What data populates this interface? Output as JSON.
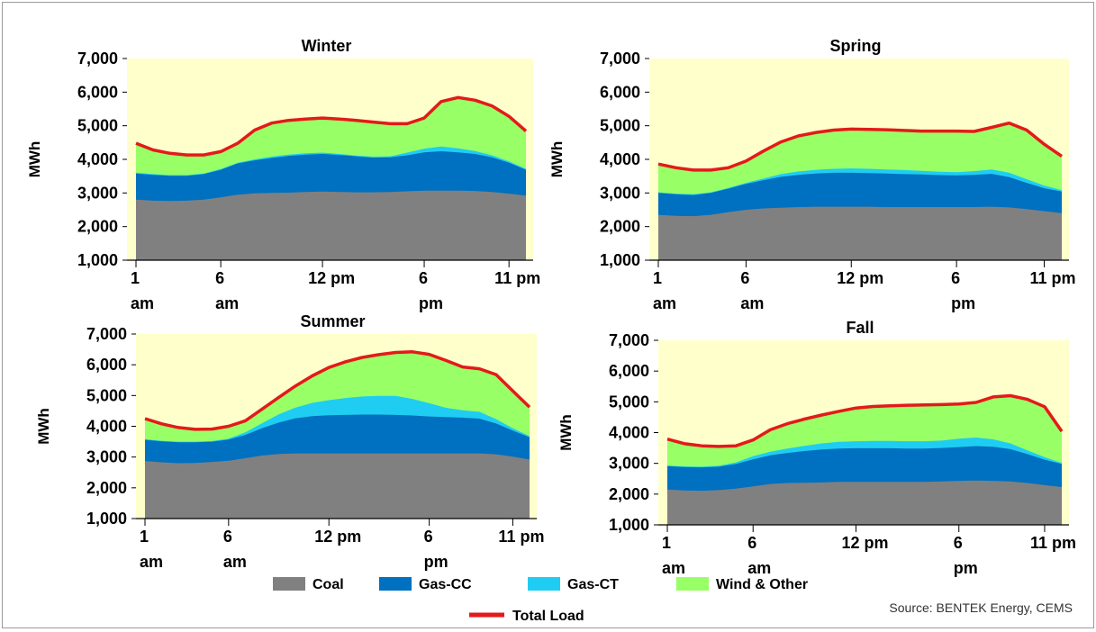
{
  "source": "Source: BENTEK Energy, CEMS",
  "colors": {
    "coal": "#808080",
    "gas_cc": "#0070C0",
    "gas_ct": "#1FCDF3",
    "wind_other": "#99FF66",
    "total_load": "#E31A1A",
    "plot_bg": "#FFFFCC"
  },
  "legend": [
    {
      "key": "coal",
      "label": "Coal"
    },
    {
      "key": "gas_cc",
      "label": "Gas-CC"
    },
    {
      "key": "gas_ct",
      "label": "Gas-CT"
    },
    {
      "key": "wind_other",
      "label": "Wind & Other"
    },
    {
      "key": "total_load",
      "label": "Total Load"
    }
  ],
  "chart_data": [
    {
      "type": "area",
      "title": "Winter",
      "ylabel": "MWh",
      "ylim": [
        1000,
        7000
      ],
      "yticks": [
        "1,000",
        "2,000",
        "3,000",
        "4,000",
        "5,000",
        "6,000",
        "7,000"
      ],
      "x": [
        1,
        2,
        3,
        4,
        5,
        6,
        7,
        8,
        9,
        10,
        11,
        12,
        13,
        14,
        15,
        16,
        17,
        18,
        19,
        20,
        21,
        22,
        23,
        24
      ],
      "xticks": [
        {
          "x": 1,
          "top": "1",
          "bottom": "am"
        },
        {
          "x": 6,
          "top": "6",
          "bottom": "am"
        },
        {
          "x": 12,
          "top": "12 pm",
          "bottom": ""
        },
        {
          "x": 18,
          "top": "6",
          "bottom": "pm"
        },
        {
          "x": 23,
          "top": "11 pm",
          "bottom": ""
        }
      ],
      "series": [
        {
          "name": "Coal",
          "key": "coal",
          "values": [
            2800,
            2770,
            2760,
            2770,
            2800,
            2870,
            2950,
            2990,
            3000,
            3010,
            3030,
            3040,
            3030,
            3020,
            3020,
            3030,
            3050,
            3070,
            3070,
            3070,
            3060,
            3030,
            2980,
            2920
          ]
        },
        {
          "name": "Gas-CC",
          "key": "gas_cc",
          "values": [
            3580,
            3540,
            3510,
            3510,
            3560,
            3690,
            3880,
            3970,
            4040,
            4100,
            4140,
            4160,
            4130,
            4090,
            4050,
            4060,
            4120,
            4210,
            4240,
            4210,
            4160,
            4060,
            3900,
            3690
          ]
        },
        {
          "name": "Gas-CT",
          "key": "gas_ct",
          "values": [
            3600,
            3560,
            3530,
            3530,
            3580,
            3710,
            3900,
            4000,
            4080,
            4140,
            4180,
            4200,
            4160,
            4110,
            4080,
            4090,
            4200,
            4320,
            4380,
            4330,
            4250,
            4120,
            3940,
            3720
          ]
        },
        {
          "name": "Wind & Other",
          "key": "wind_other",
          "values": [
            4480,
            4280,
            4180,
            4130,
            4130,
            4230,
            4480,
            4870,
            5080,
            5160,
            5200,
            5230,
            5200,
            5160,
            5110,
            5060,
            5060,
            5230,
            5720,
            5840,
            5760,
            5590,
            5280,
            4840
          ]
        },
        {
          "name": "Total Load",
          "key": "total_load",
          "values": [
            4480,
            4280,
            4180,
            4130,
            4130,
            4230,
            4480,
            4870,
            5080,
            5160,
            5200,
            5230,
            5200,
            5160,
            5110,
            5060,
            5060,
            5230,
            5720,
            5840,
            5760,
            5590,
            5280,
            4840
          ]
        }
      ]
    },
    {
      "type": "area",
      "title": "Spring",
      "ylabel": "MWh",
      "ylim": [
        1000,
        7000
      ],
      "yticks": [
        "1,000",
        "2,000",
        "3,000",
        "4,000",
        "5,000",
        "6,000",
        "7,000"
      ],
      "x": [
        1,
        2,
        3,
        4,
        5,
        6,
        7,
        8,
        9,
        10,
        11,
        12,
        13,
        14,
        15,
        16,
        17,
        18,
        19,
        20,
        21,
        22,
        23,
        24
      ],
      "xticks": [
        {
          "x": 1,
          "top": "1",
          "bottom": "am"
        },
        {
          "x": 6,
          "top": "6",
          "bottom": "am"
        },
        {
          "x": 12,
          "top": "12 pm",
          "bottom": ""
        },
        {
          "x": 18,
          "top": "6",
          "bottom": "pm"
        },
        {
          "x": 23,
          "top": "11 pm",
          "bottom": ""
        }
      ],
      "series": [
        {
          "name": "Coal",
          "key": "coal",
          "values": [
            2350,
            2320,
            2310,
            2350,
            2430,
            2500,
            2540,
            2560,
            2580,
            2590,
            2590,
            2590,
            2590,
            2580,
            2580,
            2580,
            2580,
            2580,
            2580,
            2590,
            2570,
            2520,
            2460,
            2400
          ]
        },
        {
          "name": "Gas-CC",
          "key": "gas_cc",
          "values": [
            3000,
            2960,
            2940,
            3000,
            3130,
            3270,
            3380,
            3480,
            3540,
            3580,
            3600,
            3600,
            3590,
            3580,
            3560,
            3550,
            3530,
            3520,
            3540,
            3570,
            3470,
            3300,
            3140,
            3040
          ]
        },
        {
          "name": "Gas-CT",
          "key": "gas_ct",
          "values": [
            3020,
            2980,
            2960,
            3020,
            3150,
            3300,
            3430,
            3560,
            3640,
            3690,
            3720,
            3730,
            3720,
            3700,
            3680,
            3660,
            3630,
            3620,
            3650,
            3700,
            3600,
            3410,
            3220,
            3080
          ]
        },
        {
          "name": "Wind & Other",
          "key": "wind_other",
          "values": [
            3860,
            3750,
            3680,
            3680,
            3750,
            3950,
            4250,
            4520,
            4700,
            4800,
            4870,
            4900,
            4890,
            4880,
            4860,
            4840,
            4840,
            4840,
            4830,
            4950,
            5080,
            4870,
            4450,
            4090
          ]
        },
        {
          "name": "Total Load",
          "key": "total_load",
          "values": [
            3860,
            3750,
            3680,
            3680,
            3750,
            3950,
            4250,
            4520,
            4700,
            4800,
            4870,
            4900,
            4890,
            4880,
            4860,
            4840,
            4840,
            4840,
            4830,
            4950,
            5080,
            4870,
            4450,
            4090
          ]
        }
      ]
    },
    {
      "type": "area",
      "title": "Summer",
      "ylabel": "MWh",
      "ylim": [
        1000,
        7000
      ],
      "yticks": [
        "1,000",
        "2,000",
        "3,000",
        "4,000",
        "5,000",
        "6,000",
        "7,000"
      ],
      "x": [
        1,
        2,
        3,
        4,
        5,
        6,
        7,
        8,
        9,
        10,
        11,
        12,
        13,
        14,
        15,
        16,
        17,
        18,
        19,
        20,
        21,
        22,
        23,
        24
      ],
      "xticks": [
        {
          "x": 1,
          "top": "1",
          "bottom": "am"
        },
        {
          "x": 6,
          "top": "6",
          "bottom": "am"
        },
        {
          "x": 12,
          "top": "12 pm",
          "bottom": ""
        },
        {
          "x": 18,
          "top": "6",
          "bottom": "pm"
        },
        {
          "x": 23,
          "top": "11 pm",
          "bottom": ""
        }
      ],
      "series": [
        {
          "name": "Coal",
          "key": "coal",
          "values": [
            2870,
            2830,
            2800,
            2810,
            2840,
            2880,
            2960,
            3050,
            3100,
            3120,
            3120,
            3120,
            3120,
            3120,
            3120,
            3120,
            3120,
            3120,
            3120,
            3120,
            3120,
            3090,
            3010,
            2920
          ]
        },
        {
          "name": "Gas-CC",
          "key": "gas_cc",
          "values": [
            3560,
            3510,
            3480,
            3480,
            3500,
            3570,
            3720,
            3940,
            4120,
            4260,
            4330,
            4360,
            4370,
            4380,
            4380,
            4370,
            4350,
            4320,
            4300,
            4280,
            4250,
            4090,
            3860,
            3640
          ]
        },
        {
          "name": "Gas-CT",
          "key": "gas_ct",
          "values": [
            3580,
            3530,
            3500,
            3500,
            3520,
            3600,
            3800,
            4100,
            4390,
            4610,
            4760,
            4850,
            4920,
            4970,
            4990,
            4990,
            4890,
            4750,
            4600,
            4520,
            4470,
            4230,
            3940,
            3680
          ]
        },
        {
          "name": "Wind & Other",
          "key": "wind_other",
          "values": [
            4250,
            4080,
            3960,
            3900,
            3910,
            4000,
            4180,
            4560,
            4940,
            5310,
            5640,
            5910,
            6100,
            6240,
            6330,
            6400,
            6420,
            6340,
            6140,
            5930,
            5870,
            5680,
            5150,
            4620
          ]
        },
        {
          "name": "Total Load",
          "key": "total_load",
          "values": [
            4250,
            4080,
            3960,
            3900,
            3910,
            4000,
            4180,
            4560,
            4940,
            5310,
            5640,
            5910,
            6100,
            6240,
            6330,
            6400,
            6420,
            6340,
            6140,
            5930,
            5870,
            5680,
            5150,
            4620
          ]
        }
      ]
    },
    {
      "type": "area",
      "title": "Fall",
      "ylabel": "MWh",
      "ylim": [
        1000,
        7000
      ],
      "yticks": [
        "1,000",
        "2,000",
        "3,000",
        "4,000",
        "5,000",
        "6,000",
        "7,000"
      ],
      "x": [
        1,
        2,
        3,
        4,
        5,
        6,
        7,
        8,
        9,
        10,
        11,
        12,
        13,
        14,
        15,
        16,
        17,
        18,
        19,
        20,
        21,
        22,
        23,
        24
      ],
      "xticks": [
        {
          "x": 1,
          "top": "1",
          "bottom": "am"
        },
        {
          "x": 6,
          "top": "6",
          "bottom": "am"
        },
        {
          "x": 12,
          "top": "12 pm",
          "bottom": ""
        },
        {
          "x": 18,
          "top": "6",
          "bottom": "pm"
        },
        {
          "x": 23,
          "top": "11 pm",
          "bottom": ""
        }
      ],
      "series": [
        {
          "name": "Coal",
          "key": "coal",
          "values": [
            2150,
            2120,
            2110,
            2130,
            2180,
            2250,
            2330,
            2360,
            2370,
            2380,
            2400,
            2400,
            2400,
            2400,
            2400,
            2400,
            2410,
            2430,
            2440,
            2430,
            2410,
            2360,
            2290,
            2230
          ]
        },
        {
          "name": "Gas-CC",
          "key": "gas_cc",
          "values": [
            2910,
            2880,
            2870,
            2890,
            2980,
            3130,
            3260,
            3340,
            3400,
            3450,
            3480,
            3490,
            3490,
            3490,
            3480,
            3480,
            3500,
            3530,
            3560,
            3540,
            3460,
            3300,
            3120,
            2980
          ]
        },
        {
          "name": "Gas-CT",
          "key": "gas_ct",
          "values": [
            2930,
            2900,
            2890,
            2920,
            3030,
            3230,
            3380,
            3480,
            3570,
            3650,
            3700,
            3720,
            3730,
            3730,
            3720,
            3720,
            3740,
            3800,
            3840,
            3780,
            3650,
            3420,
            3200,
            3010
          ]
        },
        {
          "name": "Wind & Other",
          "key": "wind_other",
          "values": [
            3790,
            3640,
            3570,
            3550,
            3570,
            3760,
            4090,
            4290,
            4440,
            4570,
            4690,
            4800,
            4850,
            4870,
            4890,
            4900,
            4910,
            4930,
            4980,
            5160,
            5200,
            5080,
            4840,
            4040
          ]
        },
        {
          "name": "Total Load",
          "key": "total_load",
          "values": [
            3790,
            3640,
            3570,
            3550,
            3570,
            3760,
            4090,
            4290,
            4440,
            4570,
            4690,
            4800,
            4850,
            4870,
            4890,
            4900,
            4910,
            4930,
            4980,
            5160,
            5200,
            5080,
            4840,
            4040
          ]
        }
      ]
    }
  ]
}
